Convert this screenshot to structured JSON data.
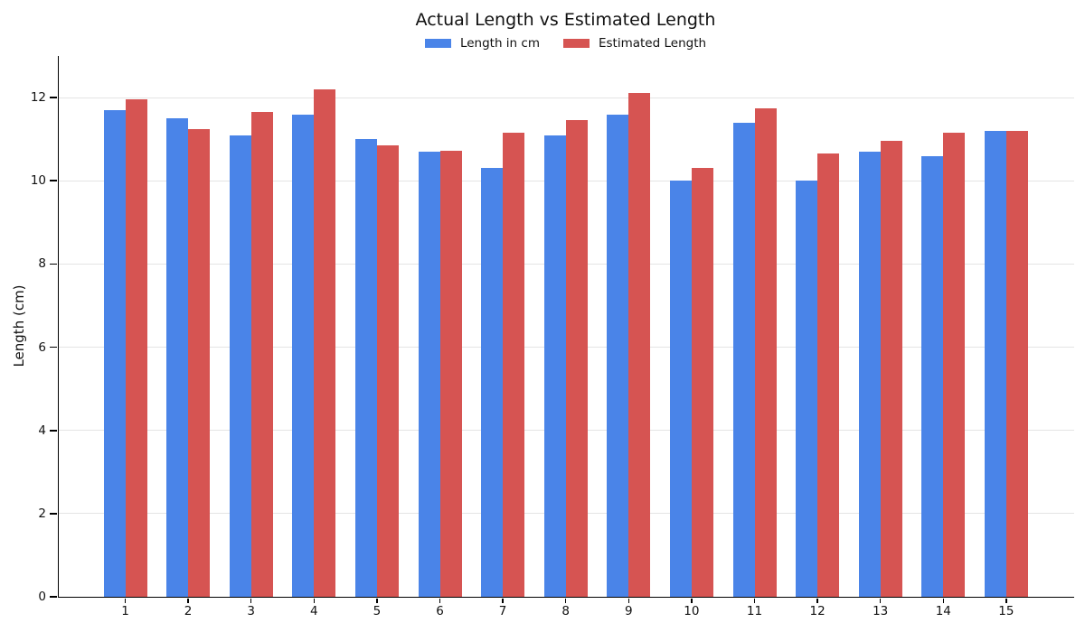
{
  "chart_data": {
    "type": "bar",
    "title": "Actual Length vs Estimated Length",
    "xlabel": "",
    "ylabel": "Length (cm)",
    "categories": [
      "1",
      "2",
      "3",
      "4",
      "5",
      "6",
      "7",
      "8",
      "9",
      "10",
      "11",
      "12",
      "13",
      "14",
      "15"
    ],
    "series": [
      {
        "name": "Length in cm",
        "color": "#4a84e8",
        "values": [
          11.7,
          11.5,
          11.1,
          11.6,
          11.0,
          10.7,
          10.3,
          11.1,
          11.6,
          10.0,
          11.4,
          10.0,
          10.7,
          10.6,
          11.2
        ]
      },
      {
        "name": "Estimated Length",
        "color": "#d65452",
        "values": [
          11.95,
          11.25,
          11.65,
          12.2,
          10.85,
          10.73,
          11.15,
          11.45,
          12.1,
          10.3,
          11.75,
          10.65,
          10.95,
          11.15,
          11.2
        ]
      }
    ],
    "ylim": [
      0,
      13
    ],
    "yticks": [
      0,
      2,
      4,
      6,
      8,
      10,
      12
    ],
    "grid": true,
    "legend_position": "top-center",
    "colors": {
      "actual": "#4a84e8",
      "estimated": "#d65452",
      "gridline": "#e4e4e4",
      "axis": "#000000",
      "text": "#111111"
    }
  }
}
